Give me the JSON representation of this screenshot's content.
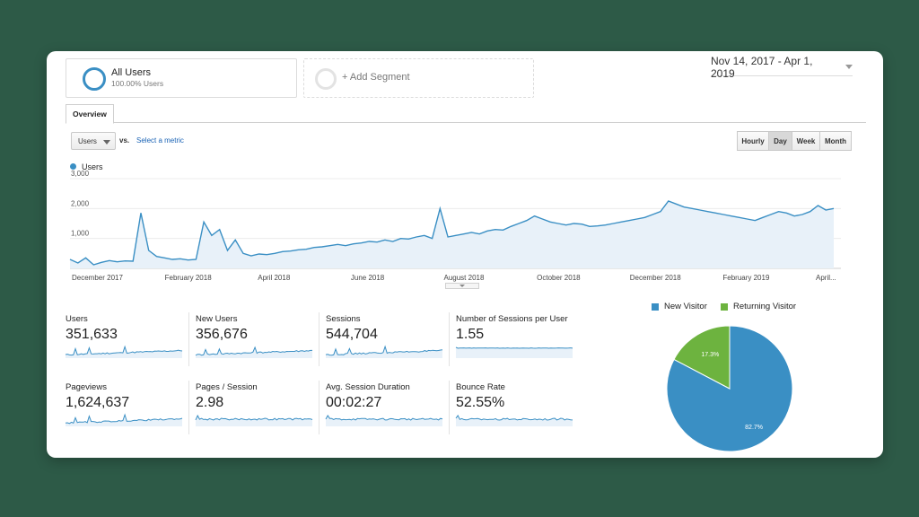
{
  "segments": {
    "all_users": {
      "title": "All Users",
      "subtitle": "100.00% Users"
    },
    "add_segment": "+ Add Segment"
  },
  "date_range": "Nov 14, 2017 - Apr 1, 2019",
  "tabs": [
    "Overview"
  ],
  "controls": {
    "metric": "Users",
    "vs": "vs.",
    "select_metric": "Select a metric",
    "periods": [
      "Hourly",
      "Day",
      "Week",
      "Month"
    ],
    "active_period": "Day"
  },
  "colors": {
    "series": "#3a8fc4",
    "new_visitor": "#3a8fc4",
    "returning_visitor": "#6db33f"
  },
  "chart_data": [
    {
      "type": "area",
      "series": [
        {
          "name": "Users",
          "values": [
            300,
            180,
            350,
            120,
            200,
            260,
            220,
            250,
            240,
            1850,
            600,
            400,
            350,
            300,
            320,
            280,
            300,
            1550,
            1100,
            1300,
            600,
            950,
            500,
            420,
            480,
            460,
            500,
            560,
            580,
            620,
            640,
            700,
            720,
            760,
            800,
            760,
            820,
            850,
            900,
            880,
            950,
            900,
            1000,
            980,
            1050,
            1100,
            1000,
            2000,
            1050,
            1100,
            1150,
            1200,
            1150,
            1250,
            1300,
            1280,
            1400,
            1500,
            1600,
            1750,
            1650,
            1550,
            1500,
            1450,
            1500,
            1480,
            1400,
            1420,
            1450,
            1500,
            1550,
            1600,
            1650,
            1700,
            1800,
            1900,
            2250,
            2150,
            2050,
            2000,
            1950,
            1900,
            1850,
            1800,
            1750,
            1700,
            1650,
            1600,
            1700,
            1800,
            1900,
            1850,
            1750,
            1800,
            1900,
            2100,
            1950,
            2000
          ]
        }
      ],
      "x_tick_labels": [
        "December 2017",
        "February 2018",
        "April 2018",
        "June 2018",
        "August 2018",
        "October 2018",
        "December 2018",
        "February 2019",
        "April..."
      ],
      "y_tick_labels": [
        "1,000",
        "2,000",
        "3,000"
      ],
      "ylim": [
        0,
        3000
      ],
      "legend": "top-left"
    },
    {
      "type": "pie",
      "categories": [
        "New Visitor",
        "Returning Visitor"
      ],
      "values": [
        82.7,
        17.3
      ],
      "labels": [
        "82.7%",
        "17.3%"
      ],
      "legend": "top"
    }
  ],
  "metrics": [
    {
      "label": "Users",
      "value": "351,633",
      "pattern": "spiky"
    },
    {
      "label": "New Users",
      "value": "356,676",
      "pattern": "spiky"
    },
    {
      "label": "Sessions",
      "value": "544,704",
      "pattern": "spiky"
    },
    {
      "label": "Number of Sessions per User",
      "value": "1.55",
      "pattern": "flat"
    },
    {
      "label": "Pageviews",
      "value": "1,624,637",
      "pattern": "spiky"
    },
    {
      "label": "Pages / Session",
      "value": "2.98",
      "pattern": "flat-noisy"
    },
    {
      "label": "Avg. Session Duration",
      "value": "00:02:27",
      "pattern": "flat-noisy"
    },
    {
      "label": "Bounce Rate",
      "value": "52.55%",
      "pattern": "flat-noisy"
    }
  ]
}
